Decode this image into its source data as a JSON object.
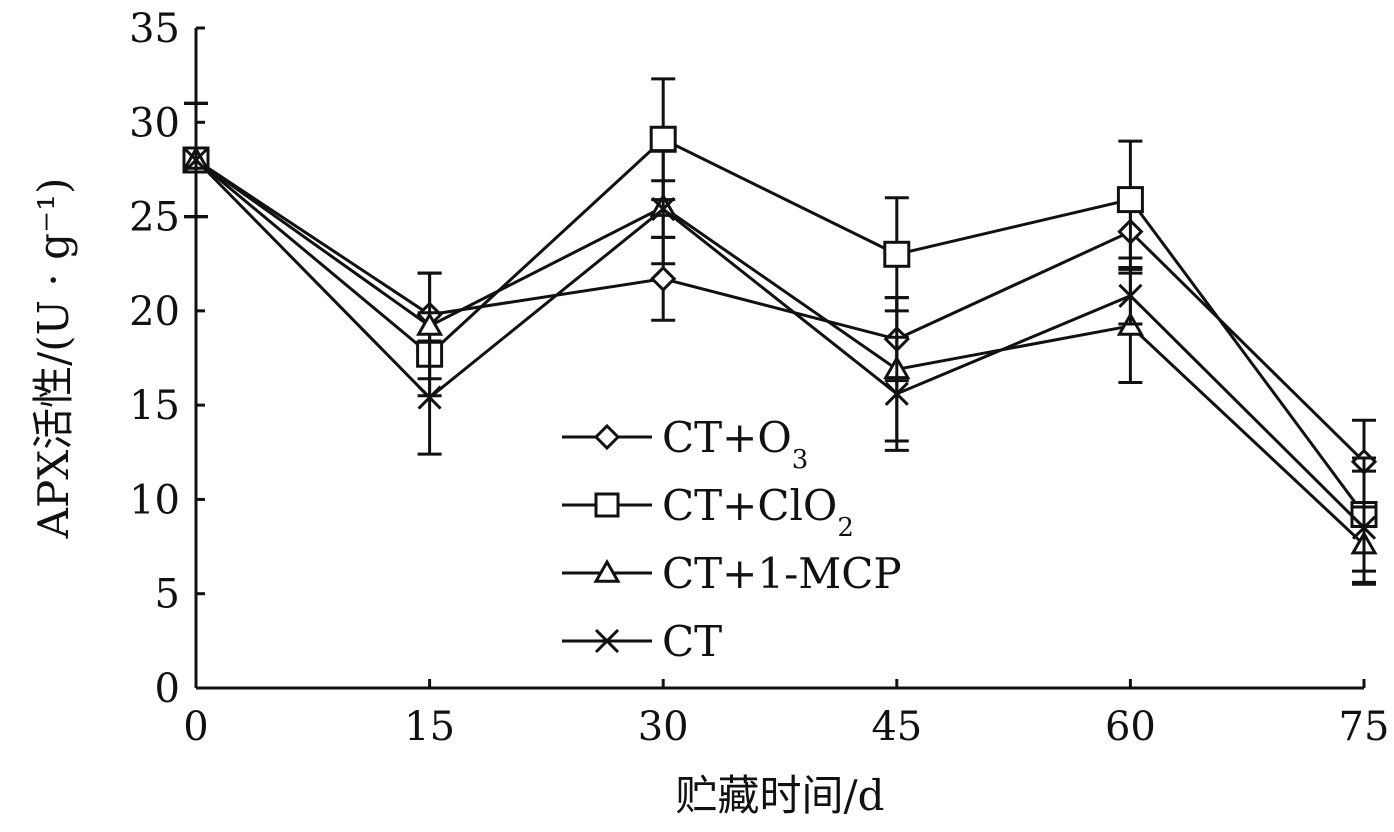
{
  "chart_data": {
    "type": "line",
    "xlabel": "贮藏时间/d",
    "ylabel": "APX活性/(U · g⁻¹)",
    "x": [
      0,
      15,
      30,
      45,
      60,
      75
    ],
    "xlim": [
      0,
      75
    ],
    "ylim": [
      0,
      35
    ],
    "x_ticks": [
      "0",
      "15",
      "30",
      "45",
      "60",
      "75"
    ],
    "y_ticks": [
      "0",
      "5",
      "10",
      "15",
      "20",
      "25",
      "30",
      "35"
    ],
    "grid": false,
    "legend_position": "center-left",
    "series": [
      {
        "name": "CT+O3",
        "legend_main": "CT+O",
        "legend_sub": "3",
        "marker": "diamond",
        "values": [
          28.0,
          19.8,
          21.7,
          18.5,
          24.2,
          12.0
        ],
        "errors": [
          3.0,
          2.2,
          2.2,
          2.2,
          2.2,
          2.2
        ]
      },
      {
        "name": "CT+ClO2",
        "legend_main": "CT+ClO",
        "legend_sub": "2",
        "marker": "square",
        "values": [
          28.0,
          17.7,
          29.1,
          23.0,
          25.9,
          9.2
        ],
        "errors": [
          3.0,
          2.2,
          3.2,
          3.0,
          3.1,
          3.0
        ]
      },
      {
        "name": "CT+1-MCP",
        "legend_main": "CT+1-MCP",
        "legend_sub": "",
        "marker": "triangle",
        "values": [
          28.0,
          19.2,
          25.5,
          16.9,
          19.2,
          7.6
        ],
        "errors": [
          3.0,
          2.8,
          3.0,
          3.8,
          3.0,
          2.0
        ]
      },
      {
        "name": "CT",
        "legend_main": "CT",
        "legend_sub": "",
        "marker": "x",
        "values": [
          28.0,
          15.4,
          25.4,
          15.6,
          20.8,
          8.5
        ],
        "errors": [
          3.0,
          3.0,
          1.5,
          3.0,
          1.5,
          3.0
        ]
      }
    ]
  }
}
